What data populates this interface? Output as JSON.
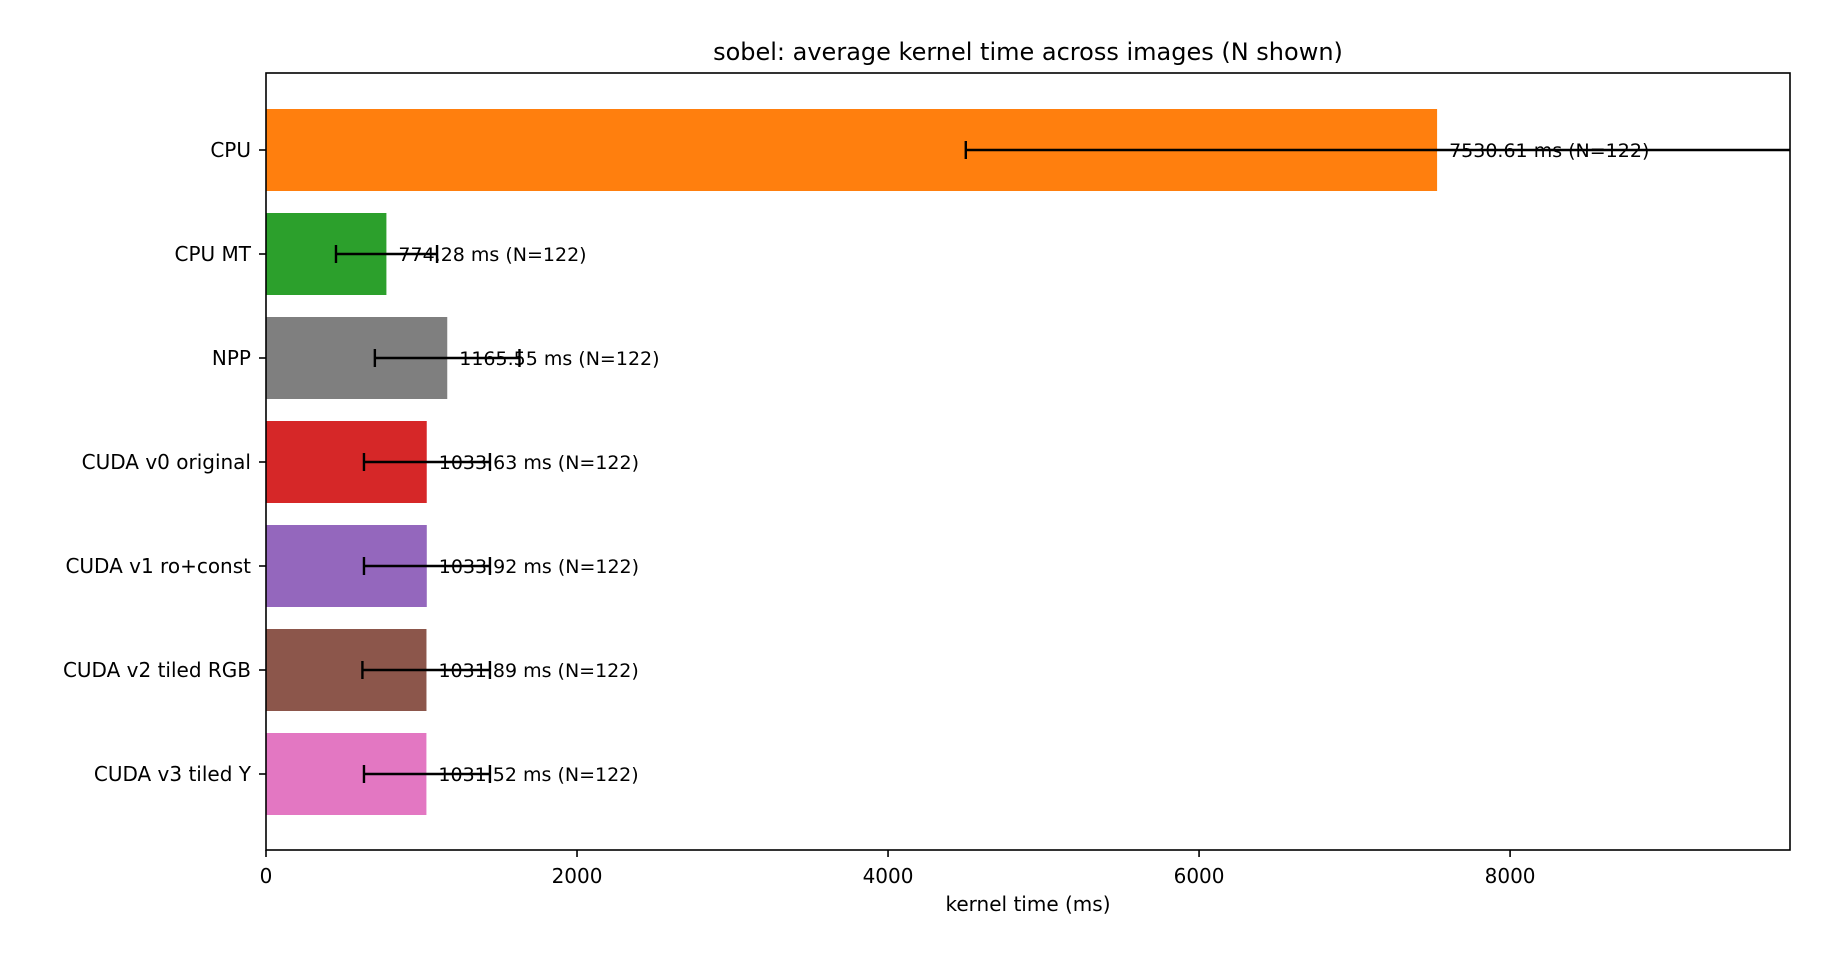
{
  "chart_data": {
    "type": "bar",
    "orientation": "horizontal",
    "title": "sobel: average kernel time across images (N shown)",
    "xlabel": "kernel time (ms)",
    "ylabel": "",
    "xlim": [
      0,
      9800
    ],
    "xticks": [
      0,
      2000,
      4000,
      6000,
      8000
    ],
    "xtick_labels": [
      "0",
      "2000",
      "4000",
      "6000",
      "8000"
    ],
    "grid": false,
    "legend": "none",
    "categories": [
      "CPU",
      "CPU MT",
      "NPP",
      "CUDA v0 original",
      "CUDA v1 ro+const",
      "CUDA v2 tiled RGB",
      "CUDA v3 tiled Y"
    ],
    "values": [
      7530.61,
      774.28,
      1165.55,
      1033.63,
      1033.92,
      1031.89,
      1031.52
    ],
    "error_low": [
      4500,
      450,
      700,
      630,
      630,
      620,
      630
    ],
    "error_high": [
      11000,
      1100,
      1630,
      1440,
      1440,
      1440,
      1440
    ],
    "n": [
      122,
      122,
      122,
      122,
      122,
      122,
      122
    ],
    "value_labels": [
      "7530.61 ms  (N=122)",
      "774.28 ms  (N=122)",
      "1165.55 ms  (N=122)",
      "1033.63 ms  (N=122)",
      "1033.92 ms  (N=122)",
      "1031.89 ms  (N=122)",
      "1031.52 ms  (N=122)"
    ],
    "colors": [
      "#ff7f0e",
      "#2ca02c",
      "#7f7f7f",
      "#d62728",
      "#9467bd",
      "#8c564b",
      "#e377c2"
    ],
    "errorbar_color": "#000000"
  }
}
